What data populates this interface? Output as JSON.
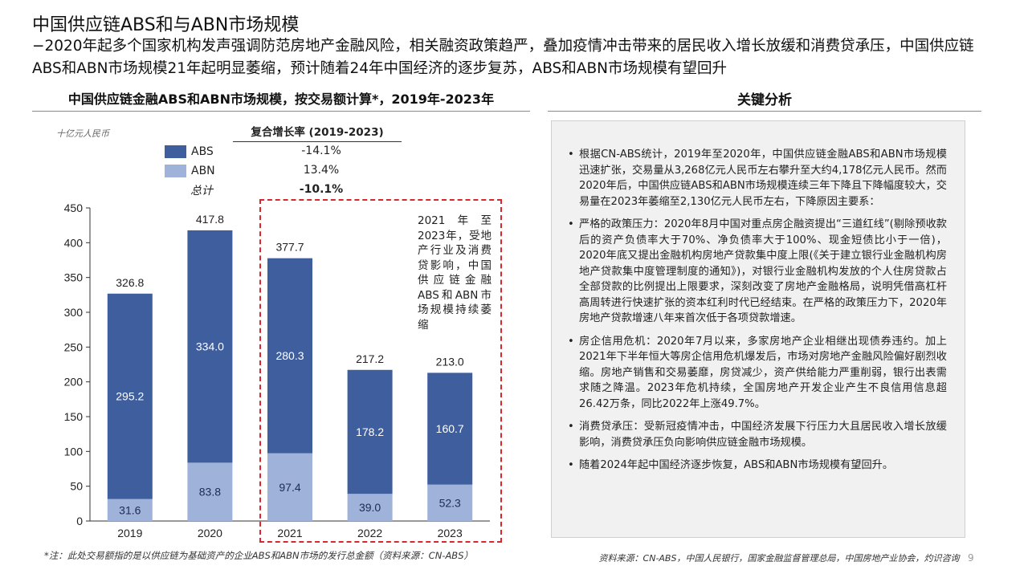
{
  "header": {
    "title": "中国供应链ABS和与ABN市场规模",
    "subtitle": "−2020年起多个国家机构发声强调防范房地产金融风险，相关融资政策趋严，叠加疫情冲击带来的居民收入增长放缓和消费贷承压，中国供应链ABS和ABN市场规模21年起明显萎缩，预计随着24年中国经济的逐步复苏，ABS和ABN市场规模有望回升"
  },
  "left_section": {
    "title": "中国供应链金融ABS和ABN市场规模，按交易额计算*，2019年-2023年",
    "unit": "十亿元人民币",
    "cagr_header": "复合增长率 (2019-2023)",
    "legend": [
      {
        "name": "ABS",
        "cagr": "-14.1%",
        "color": "#3e5e9e"
      },
      {
        "name": "ABN",
        "cagr": "13.4%",
        "color": "#9fb2d9"
      },
      {
        "name": "总计",
        "cagr": "-10.1%"
      }
    ],
    "annotation": "2021年至2023年，受地产行业及消费贷影响，中国供应链金融ABS和ABN市场规模持续萎缩"
  },
  "chart_data": {
    "type": "bar",
    "stacked": true,
    "categories": [
      "2019",
      "2020",
      "2021",
      "2022",
      "2023"
    ],
    "series": [
      {
        "name": "ABN",
        "values": [
          31.6,
          83.8,
          97.4,
          39.0,
          52.3
        ],
        "color": "#9fb2d9"
      },
      {
        "name": "ABS",
        "values": [
          295.2,
          334.0,
          280.3,
          178.2,
          160.7
        ],
        "color": "#3e5e9e"
      }
    ],
    "totals": [
      326.8,
      417.8,
      377.7,
      217.2,
      213.0
    ],
    "y_ticks": [
      0,
      50,
      100,
      150,
      200,
      250,
      300,
      350,
      400,
      450
    ],
    "ylim": [
      0,
      450
    ],
    "ylabel": "十亿元人民币",
    "grid": false
  },
  "right_section": {
    "title": "关键分析",
    "bullets": [
      "根据CN-ABS统计，2019年至2020年，中国供应链金融ABS和ABN市场规模迅速扩张，交易量从3,268亿元人民币左右攀升至大约4,178亿元人民币。然而2020年后，中国供应链ABS和ABN市场规模连续三年下降且下降幅度较大，交易量在2023年萎缩至2,130亿元人民币左右，下降原因主要系：",
      "严格的政策压力：2020年8月中国对重点房企融资提出“三道红线”(剔除预收款后的资产负债率大于70%、净负债率大于100%、现金短债比小于一倍)，2020年底又提出金融机构房地产贷款集中度上限(《关于建立银行业金融机构房地产贷款集中度管理制度的通知》)，对银行业金融机构发放的个人住房贷款占全部贷款的比例提出上限要求，深刻改变了房地产金融格局，说明凭借高杠杆高周转进行快速扩张的资本红利时代已经结束。在严格的政策压力下，2020年房地产贷款增速八年来首次低于各项贷款增速。",
      "房企信用危机：2020年7月以来，多家房地产企业相继出现债券违约。加上2021年下半年恒大等房企信用危机爆发后，市场对房地产金融风险偏好剧烈收缩。房地产销售和交易萎靡，房贷减少，资产供给能力严重削弱，银行出表需求随之降温。2023年危机持续，全国房地产开发企业产生不良信用信息超26.42万条，同比2022年上涨49.7%。",
      "消费贷承压：受新冠疫情冲击，中国经济发展下行压力大且居民收入增长放缓影响，消费贷承压负向影响供应链金融市场规模。",
      "随着2024年起中国经济逐步恢复，ABS和ABN市场规模有望回升。"
    ]
  },
  "footer": {
    "footnote": "*注：此处交易额指的是以供应链为基础资产的企业ABS和ABN市场的发行总金额（资料来源：CN-ABS）",
    "source": "资料来源：CN-ABS，中国人民银行，国家金融监督管理总局，中国房地产业协会，灼识咨询",
    "page": "9"
  }
}
